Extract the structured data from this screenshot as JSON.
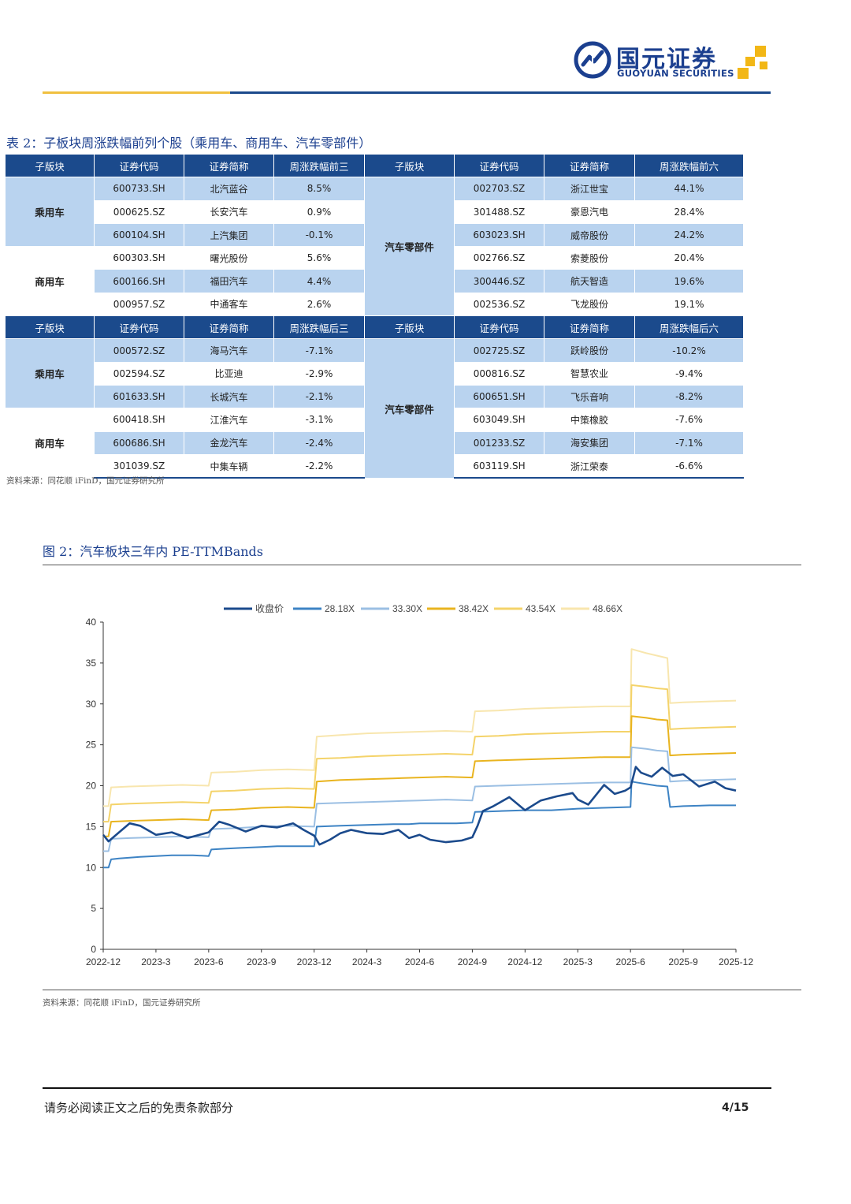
{
  "header": {
    "logo_cn": "国元证券",
    "logo_en": "GUOYUAN SECURITIES"
  },
  "table": {
    "title": "表 2：子板块周涨跌幅前列个股（乘用车、商用车、汽车零部件）",
    "top_headers": [
      "子版块",
      "证券代码",
      "证券简称",
      "周涨跌幅前三",
      "子版块",
      "证券代码",
      "证券简称",
      "周涨跌幅前六"
    ],
    "bottom_headers": [
      "子版块",
      "证券代码",
      "证券简称",
      "周涨跌幅后三",
      "子版块",
      "证券代码",
      "证券简称",
      "周涨跌幅后六"
    ],
    "sectors": {
      "passenger": "乘用车",
      "commercial": "商用车",
      "parts": "汽车零部件"
    },
    "top_left": [
      {
        "code": "600733.SH",
        "name": "北汽蓝谷",
        "chg": "8.5%"
      },
      {
        "code": "000625.SZ",
        "name": "长安汽车",
        "chg": "0.9%"
      },
      {
        "code": "600104.SH",
        "name": "上汽集团",
        "chg": "-0.1%"
      },
      {
        "code": "600303.SH",
        "name": "曙光股份",
        "chg": "5.6%"
      },
      {
        "code": "600166.SH",
        "name": "福田汽车",
        "chg": "4.4%"
      },
      {
        "code": "000957.SZ",
        "name": "中通客车",
        "chg": "2.6%"
      }
    ],
    "top_right": [
      {
        "code": "002703.SZ",
        "name": "浙江世宝",
        "chg": "44.1%"
      },
      {
        "code": "301488.SZ",
        "name": "豪恩汽电",
        "chg": "28.4%"
      },
      {
        "code": "603023.SH",
        "name": "威帝股份",
        "chg": "24.2%"
      },
      {
        "code": "002766.SZ",
        "name": "索菱股份",
        "chg": "20.4%"
      },
      {
        "code": "300446.SZ",
        "name": "航天智造",
        "chg": "19.6%"
      },
      {
        "code": "002536.SZ",
        "name": "飞龙股份",
        "chg": "19.1%"
      }
    ],
    "bottom_left": [
      {
        "code": "000572.SZ",
        "name": "海马汽车",
        "chg": "-7.1%"
      },
      {
        "code": "002594.SZ",
        "name": "比亚迪",
        "chg": "-2.9%"
      },
      {
        "code": "601633.SH",
        "name": "长城汽车",
        "chg": "-2.1%"
      },
      {
        "code": "600418.SH",
        "name": "江淮汽车",
        "chg": "-3.1%"
      },
      {
        "code": "600686.SH",
        "name": "金龙汽车",
        "chg": "-2.4%"
      },
      {
        "code": "301039.SZ",
        "name": "中集车辆",
        "chg": "-2.2%"
      }
    ],
    "bottom_right": [
      {
        "code": "002725.SZ",
        "name": "跃岭股份",
        "chg": "-10.2%"
      },
      {
        "code": "000816.SZ",
        "name": "智慧农业",
        "chg": "-9.4%"
      },
      {
        "code": "600651.SH",
        "name": "飞乐音响",
        "chg": "-8.2%"
      },
      {
        "code": "603049.SH",
        "name": "中策橡胶",
        "chg": "-7.6%"
      },
      {
        "code": "001233.SZ",
        "name": "海安集团",
        "chg": "-7.1%"
      },
      {
        "code": "603119.SH",
        "name": "浙江荣泰",
        "chg": "-6.6%"
      }
    ],
    "source": "资料来源：同花顺 iFinD，国元证券研究所"
  },
  "figure": {
    "title": "图 2：汽车板块三年内 PE-TTMBands",
    "source": "资料来源：同花顺 iFinD，国元证券研究所"
  },
  "chart_data": {
    "type": "line",
    "title": "",
    "xlabel": "",
    "ylabel": "",
    "ylim": [
      0,
      40
    ],
    "yticks": [
      0,
      5,
      10,
      15,
      20,
      25,
      30,
      35,
      40
    ],
    "x_ticks": [
      "2022-12",
      "2023-3",
      "2023-6",
      "2023-9",
      "2023-12",
      "2024-3",
      "2024-6",
      "2024-9",
      "2024-12",
      "2025-3",
      "2025-6",
      "2025-9",
      "2025-12"
    ],
    "legend_position": "top",
    "colors": {
      "close": "#1b4a8c",
      "b1": "#3d83c4",
      "b2": "#9bbfe3",
      "b3": "#e9b41f",
      "b4": "#f4d36a",
      "b5": "#f8e6ae"
    },
    "series": [
      {
        "name": "收盘价",
        "key": "close",
        "x": [
          0,
          0.1,
          0.3,
          0.5,
          0.7,
          1,
          1.3,
          1.6,
          2,
          2.2,
          2.4,
          2.7,
          3,
          3.3,
          3.6,
          3.8,
          4,
          4.1,
          4.3,
          4.5,
          4.7,
          5,
          5.3,
          5.6,
          5.8,
          6,
          6.2,
          6.5,
          6.8,
          7,
          7.1,
          7.2,
          7.4,
          7.7,
          8,
          8.3,
          8.6,
          8.9,
          9,
          9.2,
          9.5,
          9.7,
          9.9,
          10,
          10.1,
          10.2,
          10.4,
          10.6,
          10.8,
          11,
          11.3,
          11.6,
          11.8,
          12
        ],
        "values": [
          14.0,
          13.2,
          14.3,
          15.4,
          15.1,
          14.0,
          14.3,
          13.6,
          14.3,
          15.6,
          15.2,
          14.4,
          15.1,
          14.9,
          15.4,
          14.6,
          13.9,
          12.8,
          13.4,
          14.2,
          14.6,
          14.2,
          14.1,
          14.6,
          13.6,
          14.0,
          13.4,
          13.1,
          13.3,
          13.7,
          15.1,
          16.9,
          17.5,
          18.6,
          17.0,
          18.2,
          18.7,
          19.1,
          18.3,
          17.7,
          20.1,
          19.0,
          19.4,
          19.8,
          22.3,
          21.6,
          21.1,
          22.2,
          21.2,
          21.4,
          19.9,
          20.5,
          19.7,
          19.4
        ]
      },
      {
        "name": "28.18X",
        "key": "b1",
        "x": [
          0,
          0.1,
          0.15,
          0.3,
          0.5,
          0.7,
          1,
          1.3,
          1.7,
          2,
          2.05,
          2.3,
          2.6,
          3,
          3.3,
          4,
          4.05,
          4.5,
          5,
          5.5,
          5.8,
          6,
          6.3,
          6.7,
          7,
          7.05,
          7.5,
          8,
          8.5,
          9,
          9.5,
          10,
          10.02,
          10.3,
          10.5,
          10.7,
          10.75,
          11,
          11.5,
          12
        ],
        "values": [
          10.0,
          10.0,
          11.0,
          11.1,
          11.2,
          11.3,
          11.4,
          11.5,
          11.5,
          11.4,
          12.2,
          12.3,
          12.4,
          12.5,
          12.6,
          12.6,
          15.0,
          15.1,
          15.2,
          15.3,
          15.3,
          15.4,
          15.4,
          15.4,
          15.5,
          16.8,
          16.9,
          17.0,
          17.0,
          17.2,
          17.3,
          17.4,
          20.5,
          20.2,
          20.0,
          19.9,
          17.4,
          17.5,
          17.6,
          17.6
        ]
      },
      {
        "name": "33.30X",
        "key": "b2",
        "x": [
          0,
          0.1,
          0.15,
          0.5,
          1,
          1.5,
          2,
          2.05,
          2.5,
          3,
          3.5,
          4,
          4.05,
          4.5,
          5,
          5.5,
          6,
          6.5,
          7,
          7.05,
          7.5,
          8,
          8.5,
          9,
          9.5,
          10,
          10.02,
          10.3,
          10.5,
          10.7,
          10.75,
          11,
          11.5,
          12
        ],
        "values": [
          12.0,
          12.0,
          13.5,
          13.6,
          13.7,
          13.8,
          13.7,
          14.7,
          14.8,
          15.0,
          15.1,
          15.0,
          17.8,
          17.9,
          18.0,
          18.1,
          18.2,
          18.3,
          18.2,
          19.9,
          20.0,
          20.1,
          20.2,
          20.3,
          20.4,
          20.4,
          24.7,
          24.5,
          24.3,
          24.2,
          20.5,
          20.6,
          20.7,
          20.8
        ]
      },
      {
        "name": "38.42X",
        "key": "b3",
        "x": [
          0,
          0.1,
          0.15,
          0.5,
          1,
          1.5,
          2,
          2.05,
          2.5,
          3,
          3.5,
          4,
          4.05,
          4.5,
          5,
          5.5,
          6,
          6.5,
          7,
          7.05,
          7.5,
          8,
          8.5,
          9,
          9.5,
          10,
          10.02,
          10.3,
          10.5,
          10.7,
          10.75,
          11,
          11.5,
          12
        ],
        "values": [
          13.8,
          13.8,
          15.6,
          15.7,
          15.8,
          15.9,
          15.8,
          17.0,
          17.1,
          17.3,
          17.4,
          17.3,
          20.5,
          20.7,
          20.8,
          20.9,
          21.0,
          21.1,
          21.0,
          23.0,
          23.1,
          23.2,
          23.3,
          23.4,
          23.5,
          23.5,
          28.5,
          28.3,
          28.1,
          28.0,
          23.7,
          23.8,
          23.9,
          24.0
        ]
      },
      {
        "name": "43.54X",
        "key": "b4",
        "x": [
          0,
          0.1,
          0.15,
          0.5,
          1,
          1.5,
          2,
          2.05,
          2.5,
          3,
          3.5,
          4,
          4.05,
          4.5,
          5,
          5.5,
          6,
          6.5,
          7,
          7.05,
          7.5,
          8,
          8.5,
          9,
          9.5,
          10,
          10.02,
          10.3,
          10.5,
          10.7,
          10.75,
          11,
          11.5,
          12
        ],
        "values": [
          15.6,
          15.6,
          17.7,
          17.8,
          17.9,
          18.0,
          17.9,
          19.3,
          19.4,
          19.6,
          19.7,
          19.6,
          23.3,
          23.4,
          23.6,
          23.7,
          23.8,
          23.9,
          23.8,
          26.0,
          26.1,
          26.3,
          26.4,
          26.5,
          26.6,
          26.6,
          32.3,
          32.1,
          31.9,
          31.8,
          26.9,
          27.0,
          27.1,
          27.2
        ]
      },
      {
        "name": "48.66X",
        "key": "b5",
        "x": [
          0,
          0.1,
          0.15,
          0.5,
          1,
          1.5,
          2,
          2.05,
          2.5,
          3,
          3.5,
          4,
          4.05,
          4.5,
          5,
          5.5,
          6,
          6.5,
          7,
          7.05,
          7.5,
          8,
          8.5,
          9,
          9.5,
          10,
          10.02,
          10.3,
          10.5,
          10.7,
          10.75,
          11,
          11.5,
          12
        ],
        "values": [
          17.5,
          17.5,
          19.8,
          19.9,
          20.0,
          20.1,
          20.0,
          21.6,
          21.7,
          21.9,
          22.0,
          21.9,
          26.0,
          26.2,
          26.4,
          26.5,
          26.6,
          26.7,
          26.6,
          29.1,
          29.2,
          29.4,
          29.5,
          29.6,
          29.7,
          29.7,
          36.7,
          36.2,
          35.9,
          35.6,
          30.1,
          30.2,
          30.3,
          30.4
        ]
      }
    ]
  },
  "footer": {
    "disclaimer": "请务必阅读正文之后的免责条款部分",
    "page": "4/15"
  }
}
